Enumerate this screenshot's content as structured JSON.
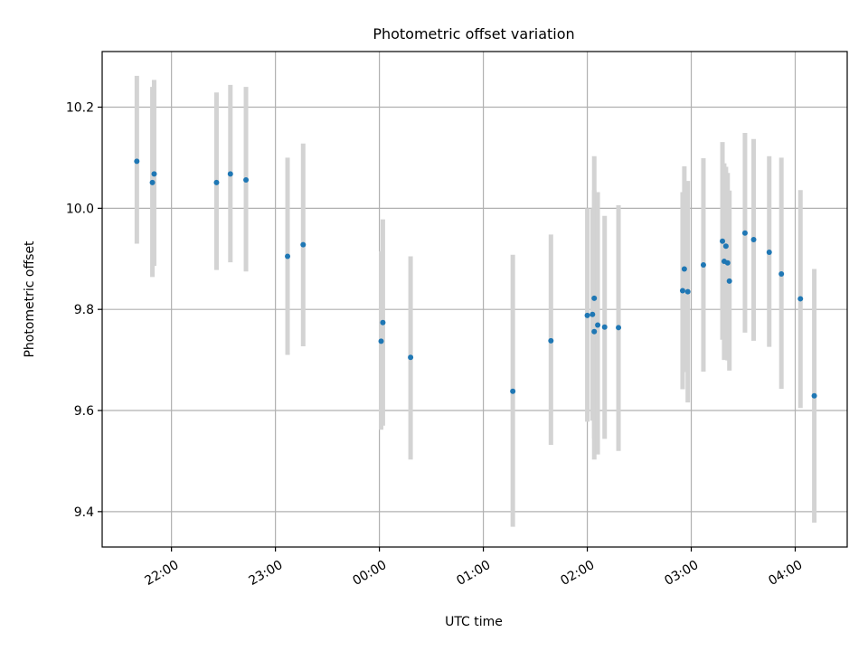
{
  "chart_data": {
    "type": "scatter",
    "title": "Photometric offset variation",
    "xlabel": "UTC time",
    "ylabel": "Photometric offset",
    "x_is_time": true,
    "xlim": [
      "21:20",
      "04:30"
    ],
    "ylim": [
      9.33,
      10.31
    ],
    "x_ticks": [
      "22:00",
      "23:00",
      "00:00",
      "01:00",
      "02:00",
      "03:00",
      "04:00"
    ],
    "y_ticks": [
      9.4,
      9.6,
      9.8,
      10.0,
      10.2
    ],
    "y_tick_labels": [
      "9.4",
      "9.6",
      "9.8",
      "10.0",
      "10.2"
    ],
    "grid": true,
    "legend": "none",
    "colors": {
      "point": "#1f77b4",
      "errorbar": "#d3d3d3",
      "grid": "#b0b0b0"
    },
    "points": [
      {
        "time": "21:40",
        "y": 10.093,
        "low": 9.93,
        "high": 10.262
      },
      {
        "time": "21:49",
        "y": 10.051,
        "low": 9.864,
        "high": 10.24
      },
      {
        "time": "21:50",
        "y": 10.068,
        "low": 9.886,
        "high": 10.254
      },
      {
        "time": "22:26",
        "y": 10.051,
        "low": 9.878,
        "high": 10.229
      },
      {
        "time": "22:34",
        "y": 10.068,
        "low": 9.893,
        "high": 10.244
      },
      {
        "time": "22:43",
        "y": 10.056,
        "low": 9.875,
        "high": 10.24
      },
      {
        "time": "23:07",
        "y": 9.905,
        "low": 9.71,
        "high": 10.1
      },
      {
        "time": "23:16",
        "y": 9.928,
        "low": 9.727,
        "high": 10.128
      },
      {
        "time": "00:01",
        "y": 9.737,
        "low": 9.562,
        "high": 9.915
      },
      {
        "time": "00:02",
        "y": 9.774,
        "low": 9.57,
        "high": 9.978
      },
      {
        "time": "00:18",
        "y": 9.705,
        "low": 9.503,
        "high": 9.905
      },
      {
        "time": "01:17",
        "y": 9.638,
        "low": 9.37,
        "high": 9.908
      },
      {
        "time": "01:39",
        "y": 9.738,
        "low": 9.532,
        "high": 9.948
      },
      {
        "time": "02:00",
        "y": 9.788,
        "low": 9.578,
        "high": 10.0
      },
      {
        "time": "02:03",
        "y": 9.79,
        "low": 9.58,
        "high": 10.0
      },
      {
        "time": "02:04",
        "y": 9.756,
        "low": 9.503,
        "high": 10.036
      },
      {
        "time": "02:04",
        "y": 9.822,
        "low": 9.545,
        "high": 10.103
      },
      {
        "time": "02:06",
        "y": 9.769,
        "low": 9.513,
        "high": 10.032
      },
      {
        "time": "02:10",
        "y": 9.765,
        "low": 9.544,
        "high": 9.985
      },
      {
        "time": "02:18",
        "y": 9.764,
        "low": 9.52,
        "high": 10.006
      },
      {
        "time": "02:55",
        "y": 9.837,
        "low": 9.642,
        "high": 10.032
      },
      {
        "time": "02:56",
        "y": 9.88,
        "low": 9.676,
        "high": 10.083
      },
      {
        "time": "02:58",
        "y": 9.835,
        "low": 9.616,
        "high": 10.054
      },
      {
        "time": "03:07",
        "y": 9.888,
        "low": 9.677,
        "high": 10.099
      },
      {
        "time": "03:18",
        "y": 9.935,
        "low": 9.74,
        "high": 10.131
      },
      {
        "time": "03:19",
        "y": 9.895,
        "low": 9.7,
        "high": 10.089
      },
      {
        "time": "03:20",
        "y": 9.925,
        "low": 9.719,
        "high": 10.082
      },
      {
        "time": "03:21",
        "y": 9.892,
        "low": 9.699,
        "high": 10.07
      },
      {
        "time": "03:22",
        "y": 9.856,
        "low": 9.679,
        "high": 10.035
      },
      {
        "time": "03:31",
        "y": 9.951,
        "low": 9.754,
        "high": 10.149
      },
      {
        "time": "03:36",
        "y": 9.938,
        "low": 9.738,
        "high": 10.137
      },
      {
        "time": "03:45",
        "y": 9.913,
        "low": 9.726,
        "high": 10.103
      },
      {
        "time": "03:52",
        "y": 9.87,
        "low": 9.643,
        "high": 10.1
      },
      {
        "time": "04:03",
        "y": 9.821,
        "low": 9.605,
        "high": 10.036
      },
      {
        "time": "04:11",
        "y": 9.629,
        "low": 9.378,
        "high": 9.88
      }
    ]
  }
}
